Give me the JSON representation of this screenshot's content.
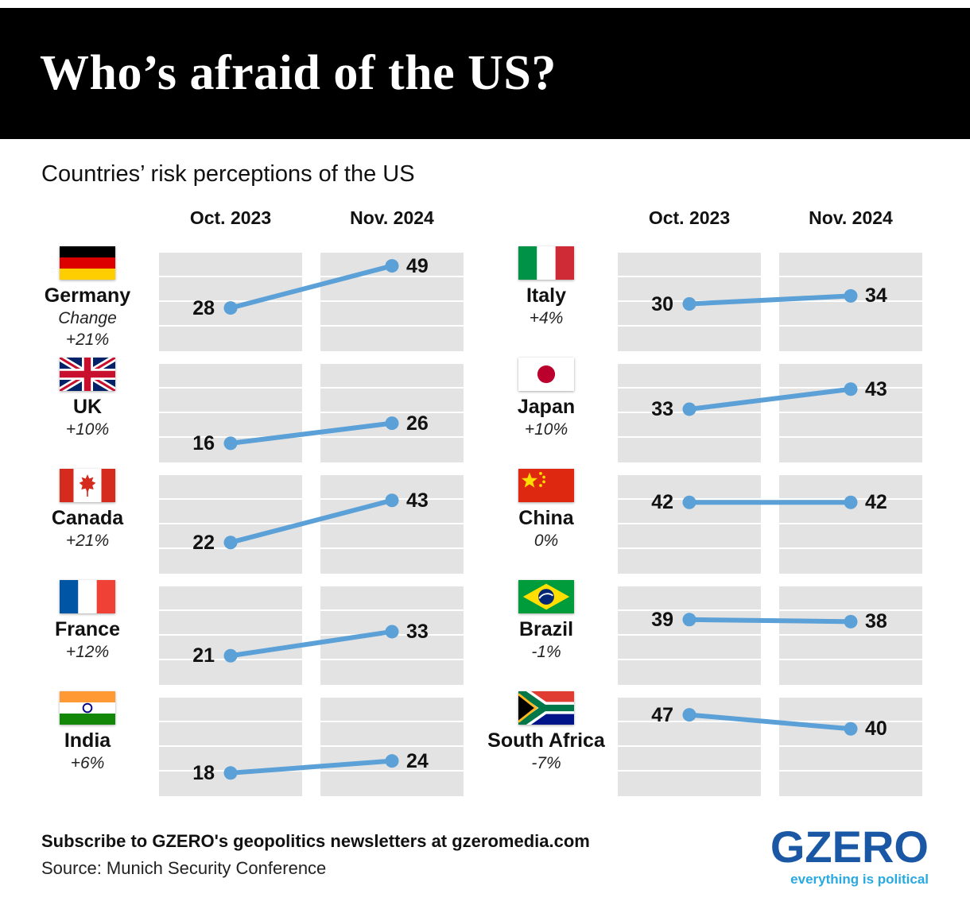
{
  "title": "Who’s afraid of the US?",
  "subtitle": "Countries’ risk perceptions of the US",
  "column_headers": {
    "oct": "Oct. 2023",
    "nov": "Nov. 2024"
  },
  "chart_data": {
    "type": "slope",
    "title": "Countries’ risk perceptions of the US",
    "periods": [
      "Oct. 2023",
      "Nov. 2024"
    ],
    "value_range": [
      10,
      52
    ],
    "accent_color": "#5ba0d6",
    "panel_color": "#e3e3e3",
    "left_column": [
      {
        "id": "germany",
        "country": "Germany",
        "change_caption": "Change",
        "change": "+21%",
        "oct": 28,
        "nov": 49
      },
      {
        "id": "uk",
        "country": "UK",
        "change": "+10%",
        "oct": 16,
        "nov": 26
      },
      {
        "id": "canada",
        "country": "Canada",
        "change": "+21%",
        "oct": 22,
        "nov": 43
      },
      {
        "id": "france",
        "country": "France",
        "change": "+12%",
        "oct": 21,
        "nov": 33
      },
      {
        "id": "india",
        "country": "India",
        "change": "+6%",
        "oct": 18,
        "nov": 24
      }
    ],
    "right_column": [
      {
        "id": "italy",
        "country": "Italy",
        "change": "+4%",
        "oct": 30,
        "nov": 34
      },
      {
        "id": "japan",
        "country": "Japan",
        "change": "+10%",
        "oct": 33,
        "nov": 43
      },
      {
        "id": "china",
        "country": "China",
        "change": "0%",
        "oct": 42,
        "nov": 42
      },
      {
        "id": "brazil",
        "country": "Brazil",
        "change": "-1%",
        "oct": 39,
        "nov": 38
      },
      {
        "id": "south-africa",
        "country": "South Africa",
        "change": "-7%",
        "oct": 47,
        "nov": 40
      }
    ]
  },
  "footer": {
    "subscribe": "Subscribe to GZERO's geopolitics newsletters at gzeromedia.com",
    "source": "Source: Munich Security Conference",
    "logo": "GZERO",
    "tagline": "everything is political"
  }
}
